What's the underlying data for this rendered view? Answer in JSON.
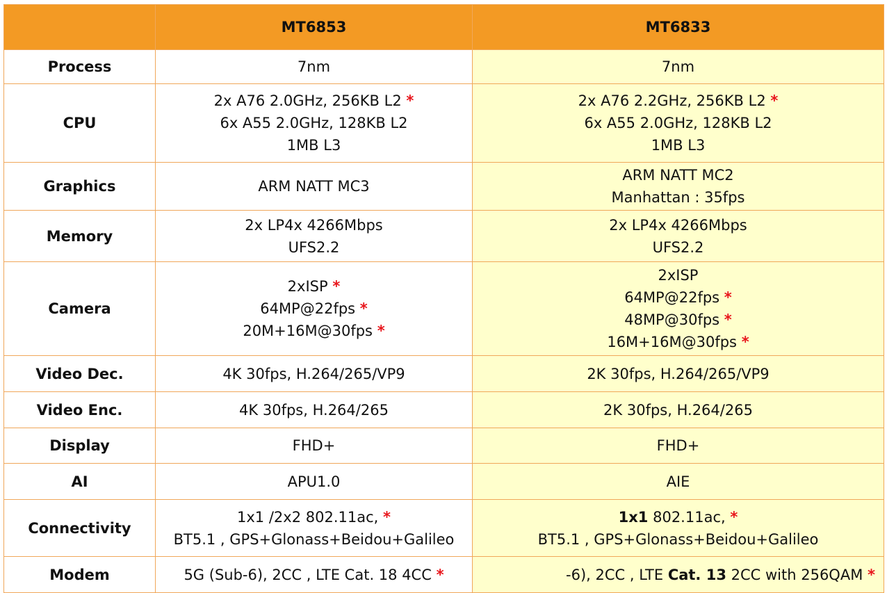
{
  "header": {
    "corner": "",
    "col1": "MT6853",
    "col2": "MT6833"
  },
  "star": "*",
  "rows": {
    "process": {
      "label": "Process",
      "c1": "7nm",
      "c2": "7nm"
    },
    "cpu": {
      "label": "CPU",
      "c1": [
        "2x A76 2.0GHz, 256KB L2",
        "6x A55 2.0GHz, 128KB L2",
        "1MB L3"
      ],
      "c2": [
        "2x A76 2.2GHz, 256KB L2",
        "6x A55 2.0GHz, 128KB L2",
        "1MB L3"
      ]
    },
    "graphics": {
      "label": "Graphics",
      "c1": "ARM NATT MC3",
      "c2": [
        "ARM NATT MC2",
        "Manhattan : 35fps"
      ]
    },
    "memory": {
      "label": "Memory",
      "c1": [
        "2x LP4x 4266Mbps",
        "UFS2.2"
      ],
      "c2": [
        "2x LP4x 4266Mbps",
        "UFS2.2"
      ]
    },
    "camera": {
      "label": "Camera",
      "c1": [
        "2xISP",
        "64MP@22fps",
        "20M+16M@30fps"
      ],
      "c2": [
        "2xISP",
        "64MP@22fps",
        "48MP@30fps",
        "16M+16M@30fps"
      ]
    },
    "video_dec": {
      "label": "Video Dec.",
      "c1": "4K 30fps, H.264/265/VP9",
      "c2": "2K 30fps, H.264/265/VP9"
    },
    "video_enc": {
      "label": "Video Enc.",
      "c1": "4K 30fps, H.264/265",
      "c2": "2K 30fps, H.264/265"
    },
    "display": {
      "label": "Display",
      "c1": "FHD+",
      "c2": "FHD+"
    },
    "ai": {
      "label": "AI",
      "c1": "APU1.0",
      "c2": "AIE"
    },
    "connectivity": {
      "label": "Connectivity",
      "c1": [
        "1x1 /2x2 802.11ac,",
        "BT5.1 , GPS+Glonass+Beidou+Galileo"
      ],
      "c2_bold": "1x1",
      "c2_rest": " 802.11ac,",
      "c2_line2": "BT5.1 , GPS+Glonass+Beidou+Galileo"
    },
    "modem": {
      "label": "Modem",
      "c1": "5G (Sub-6), 2CC , LTE Cat. 18 4CC",
      "c2_pre": "-6), 2CC , LTE ",
      "c2_bold": "Cat. 13",
      "c2_post": " 2CC with 256QAM"
    }
  }
}
